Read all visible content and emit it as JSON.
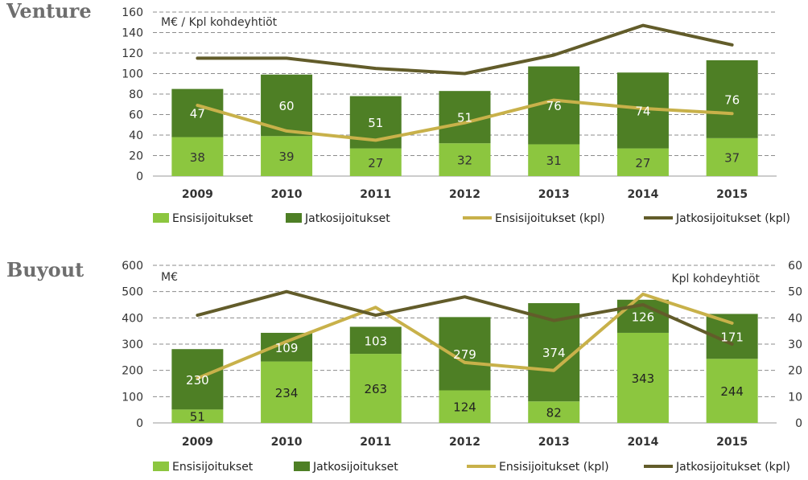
{
  "colors": {
    "ensi_bar": "#8cc63f",
    "jatko_bar": "#4e7f25",
    "ensi_line": "#c8b14a",
    "jatko_line": "#625c2a",
    "grid": "#8c8c8c",
    "heading": "#6e6e6e"
  },
  "chart_data": [
    {
      "type": "bar",
      "stacked": true,
      "heading": "Venture",
      "unit_label": "M€ / Kpl kohdeyhtiöt",
      "categories": [
        "2009",
        "2010",
        "2011",
        "2012",
        "2013",
        "2014",
        "2015"
      ],
      "ylim": [
        0,
        160
      ],
      "yticks": [
        "0",
        "20",
        "40",
        "60",
        "80",
        "100",
        "120",
        "140",
        "160"
      ],
      "grid": true,
      "legend_position": "bottom",
      "series": [
        {
          "name": "Ensisijoitukset",
          "kind": "bar",
          "values": [
            38,
            39,
            27,
            32,
            31,
            27,
            37
          ]
        },
        {
          "name": "Jatkosijoitukset",
          "kind": "bar",
          "values": [
            47,
            60,
            51,
            51,
            76,
            74,
            76
          ]
        },
        {
          "name": "Ensisijoitukset  (kpl)",
          "kind": "line",
          "axis": "left",
          "values": [
            69,
            44,
            35,
            52,
            74,
            66,
            61
          ]
        },
        {
          "name": "Jatkosijoitukset (kpl)",
          "kind": "line",
          "axis": "left",
          "values": [
            115,
            115,
            105,
            100,
            118,
            147,
            128
          ]
        }
      ]
    },
    {
      "type": "bar",
      "stacked": true,
      "heading": "Buyout",
      "unit_label": "M€",
      "unit_label_right": "Kpl kohdeyhtiöt",
      "categories": [
        "2009",
        "2010",
        "2011",
        "2012",
        "2013",
        "2014",
        "2015"
      ],
      "ylim": [
        0,
        600
      ],
      "yticks": [
        "0",
        "100",
        "200",
        "300",
        "400",
        "500",
        "600"
      ],
      "ylim_right": [
        0,
        60
      ],
      "yticks_right": [
        "0",
        "10",
        "20",
        "30",
        "40",
        "50",
        "60"
      ],
      "grid": true,
      "legend_position": "bottom",
      "series": [
        {
          "name": "Ensisijoitukset",
          "kind": "bar",
          "values": [
            51,
            234,
            263,
            124,
            82,
            343,
            244
          ]
        },
        {
          "name": "Jatkosijoitukset",
          "kind": "bar",
          "values": [
            230,
            109,
            103,
            279,
            374,
            126,
            171
          ]
        },
        {
          "name": "Ensisijoitukset  (kpl)",
          "kind": "line",
          "axis": "right",
          "values": [
            17,
            31,
            44,
            23,
            20,
            49,
            38
          ]
        },
        {
          "name": "Jatkosijoitukset (kpl)",
          "kind": "line",
          "axis": "right",
          "values": [
            41,
            50,
            41,
            48,
            39,
            45,
            30
          ]
        }
      ]
    }
  ]
}
